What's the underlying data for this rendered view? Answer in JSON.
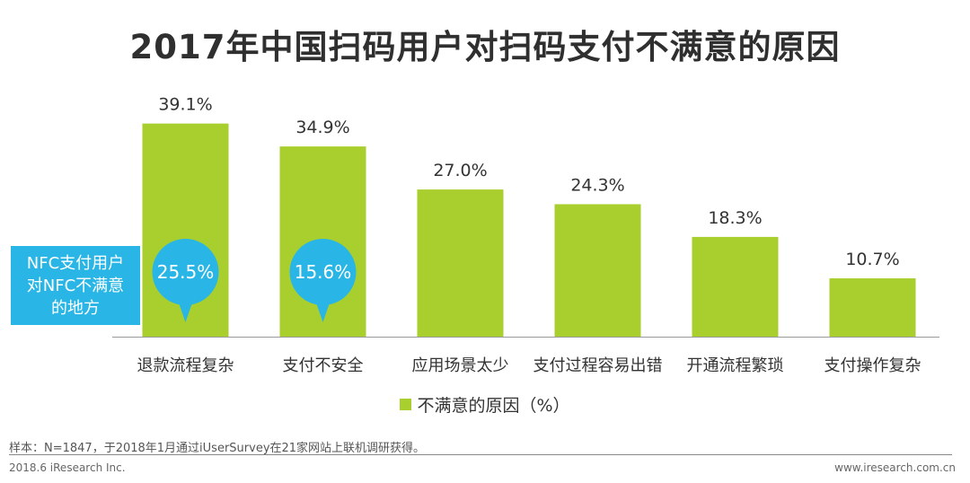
{
  "title": "2017年中国扫码用户对扫码支付不满意的原因",
  "chart_data": {
    "type": "bar",
    "categories": [
      "退款流程复杂",
      "支付不安全",
      "应用场景太少",
      "支付过程容易出错",
      "开通流程繁琐",
      "支付操作复杂"
    ],
    "series": [
      {
        "name": "不满意的原因（%）",
        "values": [
          39.1,
          34.9,
          27.0,
          24.3,
          18.3,
          10.7
        ],
        "color": "#a9cf2f"
      }
    ],
    "value_labels": [
      "39.1%",
      "34.9%",
      "27.0%",
      "24.3%",
      "18.3%",
      "10.7%"
    ],
    "ylim": [
      0,
      42
    ],
    "grid": false,
    "legend_position": "bottom",
    "annotations": [
      {
        "category": "退款流程复杂",
        "value": 25.5,
        "label": "25.5%"
      },
      {
        "category": "支付不安全",
        "value": 15.6,
        "label": "15.6%"
      }
    ],
    "callout_color": "#29b6e6"
  },
  "callout": {
    "lines": [
      "NFC支付用户",
      "对NFC不满意",
      "的地方"
    ]
  },
  "legend": {
    "label": "不满意的原因（%）",
    "color": "#a9cf2f"
  },
  "note": "样本：N=1847，于2018年1月通过iUserSurvey在21家网站上联机调研获得。",
  "footer": {
    "left": "2018.6 iResearch Inc.",
    "right": "www.iresearch.com.cn"
  }
}
